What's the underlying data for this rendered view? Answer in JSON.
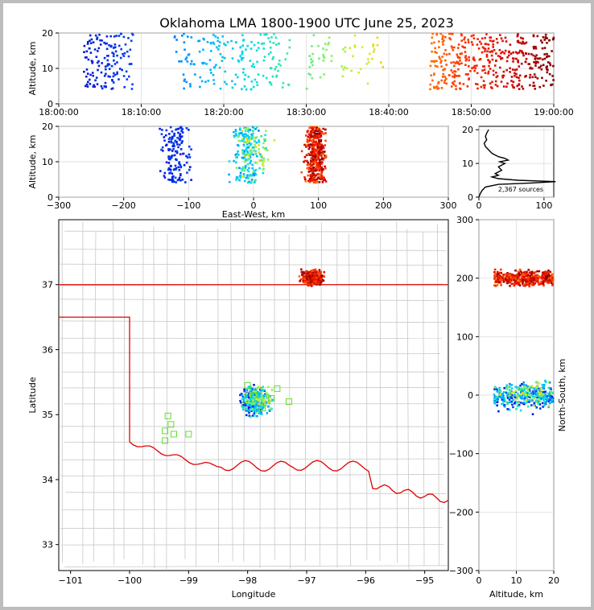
{
  "title": "Oklahoma LMA 1800-1900 UTC June 25, 2023",
  "source_count_label": "2,367 sources",
  "chart_data": [
    {
      "type": "scatter",
      "panel": "altitude-vs-time",
      "xlabel": "",
      "ylabel": "Altitude, km",
      "xticks": [
        "18:00:00",
        "18:10:00",
        "18:20:00",
        "18:30:00",
        "18:40:00",
        "18:50:00",
        "19:00:00"
      ],
      "xlim_minutes": [
        0,
        60
      ],
      "ylim": [
        0,
        20
      ],
      "yticks": [
        0,
        10,
        20
      ],
      "color_scale": "time (blue early -> red late)"
    },
    {
      "type": "scatter",
      "panel": "altitude-vs-east-west",
      "xlabel": "East-West, km",
      "ylabel": "Altitude, km",
      "xlim": [
        -300,
        300
      ],
      "xticks": [
        -300,
        -200,
        -100,
        0,
        100,
        200,
        300
      ],
      "ylim": [
        0,
        20
      ],
      "yticks": [
        0,
        10,
        20
      ]
    },
    {
      "type": "line",
      "panel": "altitude-histogram",
      "xlim": [
        0,
        115
      ],
      "xticks": [
        0,
        100
      ],
      "ylim": [
        0,
        21
      ],
      "yticks": [
        0,
        10,
        20
      ],
      "profile": [
        [
          0,
          0
        ],
        [
          2,
          1
        ],
        [
          5,
          2
        ],
        [
          10,
          3
        ],
        [
          30,
          3.8
        ],
        [
          80,
          4.2
        ],
        [
          118,
          4.6
        ],
        [
          60,
          5
        ],
        [
          30,
          5.5
        ],
        [
          20,
          6
        ],
        [
          30,
          6.5
        ],
        [
          25,
          7
        ],
        [
          35,
          8
        ],
        [
          30,
          9
        ],
        [
          40,
          10
        ],
        [
          32,
          10.5
        ],
        [
          45,
          11
        ],
        [
          40,
          11.5
        ],
        [
          30,
          12
        ],
        [
          20,
          13
        ],
        [
          15,
          14
        ],
        [
          10,
          15
        ],
        [
          8,
          16
        ],
        [
          12,
          17
        ],
        [
          10,
          18
        ],
        [
          12,
          19
        ],
        [
          15,
          20
        ]
      ]
    },
    {
      "type": "scatter",
      "panel": "plan-view-map",
      "xlabel": "Longitude",
      "ylabel": "Latitude",
      "xlim": [
        -101.2,
        -94.6
      ],
      "ylim": [
        32.6,
        38.0
      ],
      "xticks": [
        -101,
        -100,
        -99,
        -98,
        -97,
        -96,
        -95
      ],
      "yticks": [
        33,
        34,
        35,
        36,
        37
      ],
      "stations_label": "LMA stations (green squares)"
    },
    {
      "type": "scatter",
      "panel": "north-south-vs-altitude",
      "xlabel": "Altitude, km",
      "ylabel": "North-South, km",
      "xlim": [
        0,
        20
      ],
      "xticks": [
        0,
        10,
        20
      ],
      "ylim": [
        -300,
        300
      ],
      "yticks": [
        -300,
        -200,
        -100,
        0,
        100,
        200,
        300
      ]
    }
  ]
}
